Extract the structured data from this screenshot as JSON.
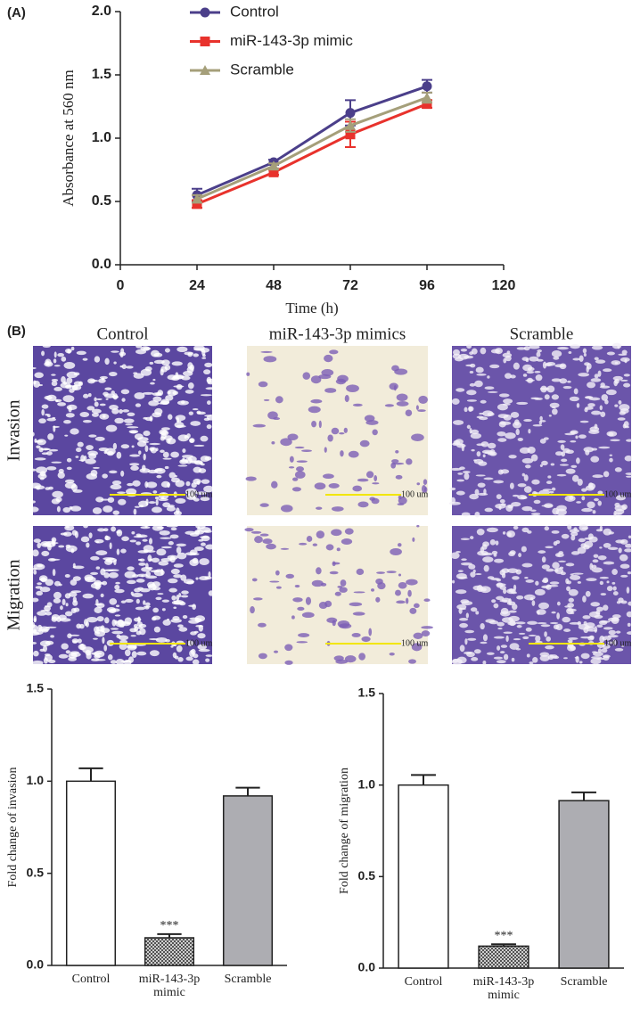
{
  "chart_data": [
    {
      "type": "line",
      "panel_label": "(A)",
      "xlabel": "Time (h)",
      "ylabel": "Absorbance at 560 nm",
      "x": [
        24,
        48,
        72,
        96
      ],
      "series": [
        {
          "name": "Control",
          "color": "#4b3f8a",
          "marker": "circle",
          "values": [
            0.55,
            0.81,
            1.2,
            1.41
          ],
          "errors": [
            0.05,
            0.02,
            0.1,
            0.05
          ]
        },
        {
          "name": "miR-143-3p mimic",
          "color": "#e8322c",
          "marker": "square",
          "values": [
            0.48,
            0.73,
            1.03,
            1.27
          ],
          "errors": [
            0.03,
            0.02,
            0.1,
            0.03
          ]
        },
        {
          "name": "Scramble",
          "color": "#a59f7a",
          "marker": "triangle",
          "values": [
            0.52,
            0.78,
            1.1,
            1.32
          ],
          "errors": [
            0.03,
            0.02,
            0.05,
            0.04
          ]
        }
      ],
      "xlim": [
        0,
        120
      ],
      "xticks": [
        0,
        24,
        48,
        72,
        96,
        120
      ],
      "ylim": [
        0,
        2
      ],
      "yticks": [
        {
          "value": 0,
          "label": "0.0"
        },
        0.5,
        {
          "value": 1,
          "label": "1.0"
        },
        1.5,
        {
          "value": 2,
          "label": "2.0"
        }
      ],
      "legend": "top"
    },
    {
      "type": "bar",
      "ylabel": "Fold change of invasion",
      "categories": [
        "Control",
        "miR-143-3p mimic",
        "Scramble"
      ],
      "values": [
        1.0,
        0.15,
        0.92
      ],
      "errors": [
        0.07,
        0.02,
        0.045
      ],
      "significance": [
        null,
        "***",
        null
      ],
      "colors": [
        "#ffffff",
        "#555555",
        "#adadb2"
      ],
      "hatched": [
        false,
        true,
        false
      ],
      "ylim": [
        0,
        1.5
      ],
      "yticks": [
        {
          "value": 0,
          "label": "0.0"
        },
        0.5,
        {
          "value": 1,
          "label": "1.0"
        },
        1.5
      ]
    },
    {
      "type": "bar",
      "ylabel": "Fold change of migration",
      "categories": [
        "Control",
        "miR-143-3p mimic",
        "Scramble"
      ],
      "values": [
        1.0,
        0.12,
        0.915
      ],
      "errors": [
        0.055,
        0.01,
        0.045
      ],
      "significance": [
        null,
        "***",
        null
      ],
      "colors": [
        "#ffffff",
        "#555555",
        "#adadb2"
      ],
      "hatched": [
        false,
        true,
        false
      ],
      "ylim": [
        0,
        1.5
      ],
      "yticks": [
        {
          "value": 0,
          "label": "0.0"
        },
        0.5,
        {
          "value": 1,
          "label": "1.0"
        },
        1.5
      ]
    }
  ],
  "micrographs": {
    "panel_label": "(B)",
    "columns": [
      "Control",
      "miR-143-3p mimics",
      "Scramble"
    ],
    "rows": [
      "Invasion",
      "Migration"
    ],
    "scale_bar": "100 um"
  }
}
